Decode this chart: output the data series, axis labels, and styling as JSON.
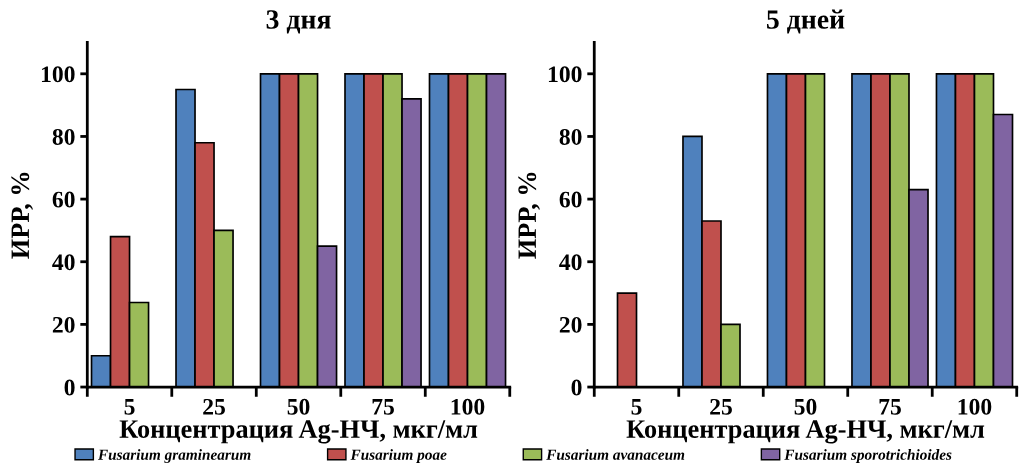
{
  "chart_data": [
    {
      "type": "bar",
      "title": "3 дня",
      "xlabel": "Концентрация Ag-НЧ, мкг/мл",
      "ylabel": "ИРР, %",
      "categories": [
        "5",
        "25",
        "50",
        "75",
        "100"
      ],
      "ylim": [
        0,
        110
      ],
      "yticks": [
        0,
        20,
        40,
        60,
        80,
        100
      ],
      "grid": false,
      "legend": "bottom",
      "series": [
        {
          "name": "Fusarium graminearum",
          "color": "#4f81bd",
          "values": [
            10,
            95,
            100,
            100,
            100
          ]
        },
        {
          "name": "Fusarium poae",
          "color": "#c0504d",
          "values": [
            48,
            78,
            100,
            100,
            100
          ]
        },
        {
          "name": "Fusarium avanaceum",
          "color": "#9bbb59",
          "values": [
            27,
            50,
            100,
            100,
            100
          ]
        },
        {
          "name": "Fusarium sporotrichioides",
          "color": "#8064a2",
          "values": [
            null,
            null,
            45,
            92,
            100
          ]
        }
      ]
    },
    {
      "type": "bar",
      "title": "5 дней",
      "xlabel": "Концентрация Ag-НЧ, мкг/мл",
      "ylabel": "ИРР, %",
      "categories": [
        "5",
        "25",
        "50",
        "75",
        "100"
      ],
      "ylim": [
        0,
        110
      ],
      "yticks": [
        0,
        20,
        40,
        60,
        80,
        100
      ],
      "grid": false,
      "series": [
        {
          "color": "#4f81bd",
          "values": [
            null,
            80,
            100,
            100,
            100
          ]
        },
        {
          "color": "#c0504d",
          "values": [
            30,
            53,
            100,
            100,
            100
          ]
        },
        {
          "color": "#9bbb59",
          "values": [
            null,
            20,
            100,
            100,
            100
          ]
        },
        {
          "color": "#8064a2",
          "values": [
            null,
            null,
            null,
            63,
            87
          ]
        }
      ]
    }
  ]
}
